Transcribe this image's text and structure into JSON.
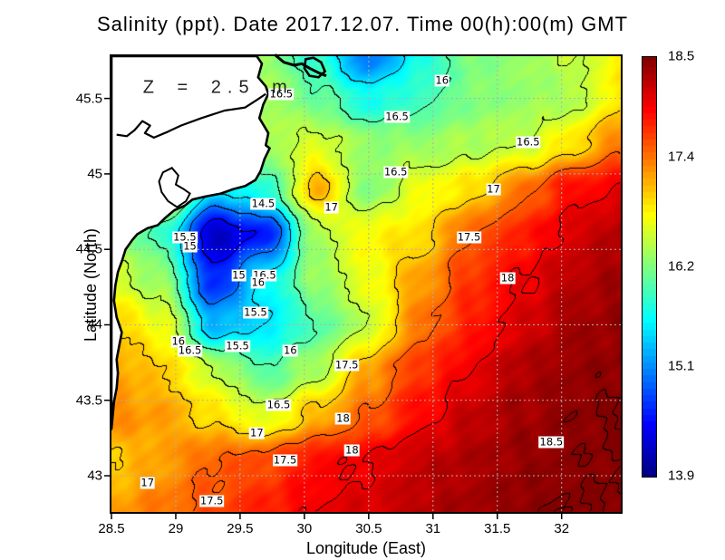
{
  "chart_data": {
    "type": "heatmap",
    "title": "Salinity (ppt). Date 2017.12.07. Time 00(h):00(m) GMT",
    "xlabel": "Longitude (East)",
    "ylabel": "Latitude (North)",
    "annotation": "Z = 2.5 m",
    "annotation_pos": {
      "lon": 29.33,
      "lat": 45.57
    },
    "xlim": [
      28.5,
      32.46
    ],
    "ylim": [
      42.76,
      45.78
    ],
    "xticks": [
      28.5,
      29,
      29.5,
      30,
      30.5,
      31,
      31.5,
      32
    ],
    "yticks": [
      43,
      43.5,
      44,
      44.5,
      45,
      45.5
    ],
    "grid": true,
    "grid_color": "#b0b0b0",
    "land_color": "#ffffff",
    "coast_color": "#000000",
    "colorbar": {
      "min": 13.9,
      "max": 18.5,
      "ticks": [
        "18.5",
        "17.4",
        "16.2",
        "15.1",
        "13.9"
      ],
      "tick_values": [
        18.5,
        17.4,
        16.2,
        15.1,
        13.9
      ],
      "colormap": "jet"
    },
    "contour_interval": 0.5,
    "contour_levels": [
      14.5,
      15,
      15.5,
      16,
      16.5,
      17,
      17.5,
      18,
      18.5
    ],
    "field": {
      "lons": [
        28.5,
        28.9,
        29.3,
        29.7,
        30.1,
        30.5,
        30.9,
        31.3,
        31.7,
        32.1,
        32.46
      ],
      "lats": [
        45.78,
        45.5,
        45.2,
        44.9,
        44.6,
        44.3,
        44.0,
        43.7,
        43.4,
        43.1,
        42.76
      ],
      "values": [
        [
          16.5,
          16.5,
          16.4,
          16.3,
          15.8,
          15.0,
          15.7,
          16.2,
          16.3,
          16.5,
          16.8
        ],
        [
          16.6,
          16.6,
          16.5,
          16.4,
          16.1,
          15.7,
          15.9,
          16.2,
          16.3,
          16.4,
          16.9
        ],
        [
          16.8,
          16.8,
          16.7,
          16.4,
          16.6,
          16.3,
          16.3,
          16.4,
          16.5,
          16.9,
          17.4
        ],
        [
          16.9,
          16.9,
          15.5,
          15.8,
          17.1,
          16.2,
          16.7,
          16.9,
          17.4,
          17.9,
          18.0
        ],
        [
          16.4,
          15.9,
          14.2,
          14.6,
          16.4,
          16.8,
          16.9,
          17.5,
          17.8,
          18.1,
          18.3
        ],
        [
          16.6,
          16.3,
          14.6,
          15.6,
          16.3,
          16.7,
          17.2,
          17.7,
          18.0,
          18.25,
          18.35
        ],
        [
          17.0,
          16.7,
          15.3,
          15.5,
          16.0,
          16.5,
          17.4,
          17.8,
          18.1,
          18.35,
          18.4
        ],
        [
          17.2,
          17.0,
          16.5,
          16.0,
          16.4,
          17.2,
          17.7,
          18.0,
          18.3,
          18.4,
          18.45
        ],
        [
          17.3,
          17.2,
          16.9,
          16.6,
          17.1,
          17.5,
          17.9,
          18.2,
          18.35,
          18.45,
          18.5
        ],
        [
          17.0,
          17.2,
          17.5,
          17.6,
          17.9,
          18.0,
          18.2,
          18.3,
          18.4,
          18.45,
          18.5
        ],
        [
          17.2,
          17.4,
          17.6,
          17.8,
          18.0,
          18.1,
          18.25,
          18.35,
          18.45,
          18.5,
          18.5
        ]
      ]
    },
    "contour_labels": [
      {
        "v": "16.5",
        "lon": 29.82,
        "lat": 45.53
      },
      {
        "v": "16",
        "lon": 31.07,
        "lat": 45.62
      },
      {
        "v": "16.5",
        "lon": 30.72,
        "lat": 45.38
      },
      {
        "v": "16.5",
        "lon": 31.74,
        "lat": 45.21
      },
      {
        "v": "16.5",
        "lon": 30.71,
        "lat": 45.01
      },
      {
        "v": "17",
        "lon": 31.47,
        "lat": 44.9
      },
      {
        "v": "14.5",
        "lon": 29.68,
        "lat": 44.8
      },
      {
        "v": "17",
        "lon": 30.21,
        "lat": 44.78
      },
      {
        "v": "15.5",
        "lon": 29.07,
        "lat": 44.58
      },
      {
        "v": "15",
        "lon": 29.11,
        "lat": 44.52
      },
      {
        "v": "17.5",
        "lon": 31.28,
        "lat": 44.58
      },
      {
        "v": "15",
        "lon": 29.49,
        "lat": 44.33
      },
      {
        "v": "16.5",
        "lon": 29.69,
        "lat": 44.33
      },
      {
        "v": "16",
        "lon": 29.64,
        "lat": 44.28
      },
      {
        "v": "18",
        "lon": 31.58,
        "lat": 44.31
      },
      {
        "v": "15.5",
        "lon": 29.62,
        "lat": 44.08
      },
      {
        "v": "15.5",
        "lon": 29.48,
        "lat": 43.86
      },
      {
        "v": "16",
        "lon": 29.02,
        "lat": 43.89
      },
      {
        "v": "16.5",
        "lon": 29.11,
        "lat": 43.83
      },
      {
        "v": "16",
        "lon": 29.89,
        "lat": 43.83
      },
      {
        "v": "17.5",
        "lon": 30.33,
        "lat": 43.73
      },
      {
        "v": "16.5",
        "lon": 29.8,
        "lat": 43.47
      },
      {
        "v": "18",
        "lon": 30.3,
        "lat": 43.38
      },
      {
        "v": "17",
        "lon": 29.63,
        "lat": 43.28
      },
      {
        "v": "18.5",
        "lon": 31.92,
        "lat": 43.22
      },
      {
        "v": "18",
        "lon": 30.37,
        "lat": 43.17
      },
      {
        "v": "17.5",
        "lon": 29.85,
        "lat": 43.1
      },
      {
        "v": "17",
        "lon": 28.78,
        "lat": 42.95
      },
      {
        "v": "17.5",
        "lon": 29.28,
        "lat": 42.83
      }
    ],
    "land": {
      "polygon": [
        [
          28.5,
          45.78
        ],
        [
          29.63,
          45.78
        ],
        [
          29.67,
          45.73
        ],
        [
          29.64,
          45.64
        ],
        [
          29.7,
          45.58
        ],
        [
          29.72,
          45.53
        ],
        [
          29.68,
          45.46
        ],
        [
          29.65,
          45.37
        ],
        [
          29.72,
          45.27
        ],
        [
          29.7,
          45.19
        ],
        [
          29.73,
          45.17
        ],
        [
          29.69,
          45.1
        ],
        [
          29.66,
          45.02
        ],
        [
          29.62,
          44.96
        ],
        [
          29.54,
          44.92
        ],
        [
          29.45,
          44.9
        ],
        [
          29.35,
          44.87
        ],
        [
          29.23,
          44.85
        ],
        [
          29.13,
          44.83
        ],
        [
          29.07,
          44.79
        ],
        [
          28.99,
          44.76
        ],
        [
          28.92,
          44.71
        ],
        [
          28.86,
          44.66
        ],
        [
          28.78,
          44.64
        ],
        [
          28.7,
          44.6
        ],
        [
          28.66,
          44.56
        ],
        [
          28.61,
          44.5
        ],
        [
          28.58,
          44.42
        ],
        [
          28.55,
          44.35
        ],
        [
          28.53,
          44.26
        ],
        [
          28.52,
          44.16
        ],
        [
          28.54,
          44.05
        ],
        [
          28.58,
          43.95
        ],
        [
          28.56,
          43.86
        ],
        [
          28.54,
          43.77
        ],
        [
          28.55,
          43.68
        ],
        [
          28.54,
          43.58
        ],
        [
          28.52,
          43.49
        ],
        [
          28.51,
          43.4
        ],
        [
          28.5,
          43.31
        ]
      ],
      "lagoon_line": [
        [
          28.54,
          45.26
        ],
        [
          28.62,
          45.25
        ],
        [
          28.68,
          45.29
        ],
        [
          28.74,
          45.35
        ],
        [
          28.8,
          45.32
        ],
        [
          28.76,
          45.27
        ],
        [
          28.83,
          45.24
        ],
        [
          28.94,
          45.28
        ],
        [
          29.04,
          45.32
        ],
        [
          29.2,
          45.37
        ],
        [
          29.38,
          45.42
        ],
        [
          29.54,
          45.44
        ],
        [
          29.63,
          45.49
        ],
        [
          29.7,
          45.53
        ]
      ],
      "lagoon_blob": [
        [
          29.01,
          44.78
        ],
        [
          28.94,
          44.82
        ],
        [
          28.89,
          44.88
        ],
        [
          28.87,
          44.95
        ],
        [
          28.9,
          45.01
        ],
        [
          28.97,
          45.04
        ],
        [
          29.02,
          44.99
        ],
        [
          29.0,
          44.93
        ],
        [
          29.06,
          44.9
        ],
        [
          29.11,
          44.87
        ],
        [
          29.08,
          44.82
        ]
      ],
      "channel_line": [
        [
          29.77,
          45.79
        ],
        [
          29.84,
          45.74
        ],
        [
          29.92,
          45.72
        ],
        [
          29.98,
          45.73
        ],
        [
          30.04,
          45.7
        ],
        [
          30.11,
          45.67
        ],
        [
          30.17,
          45.65
        ]
      ],
      "island_blob": [
        [
          30.01,
          45.76
        ],
        [
          30.07,
          45.77
        ],
        [
          30.13,
          45.74
        ],
        [
          30.16,
          45.68
        ],
        [
          30.11,
          45.64
        ],
        [
          30.04,
          45.65
        ],
        [
          30.0,
          45.7
        ]
      ]
    }
  }
}
